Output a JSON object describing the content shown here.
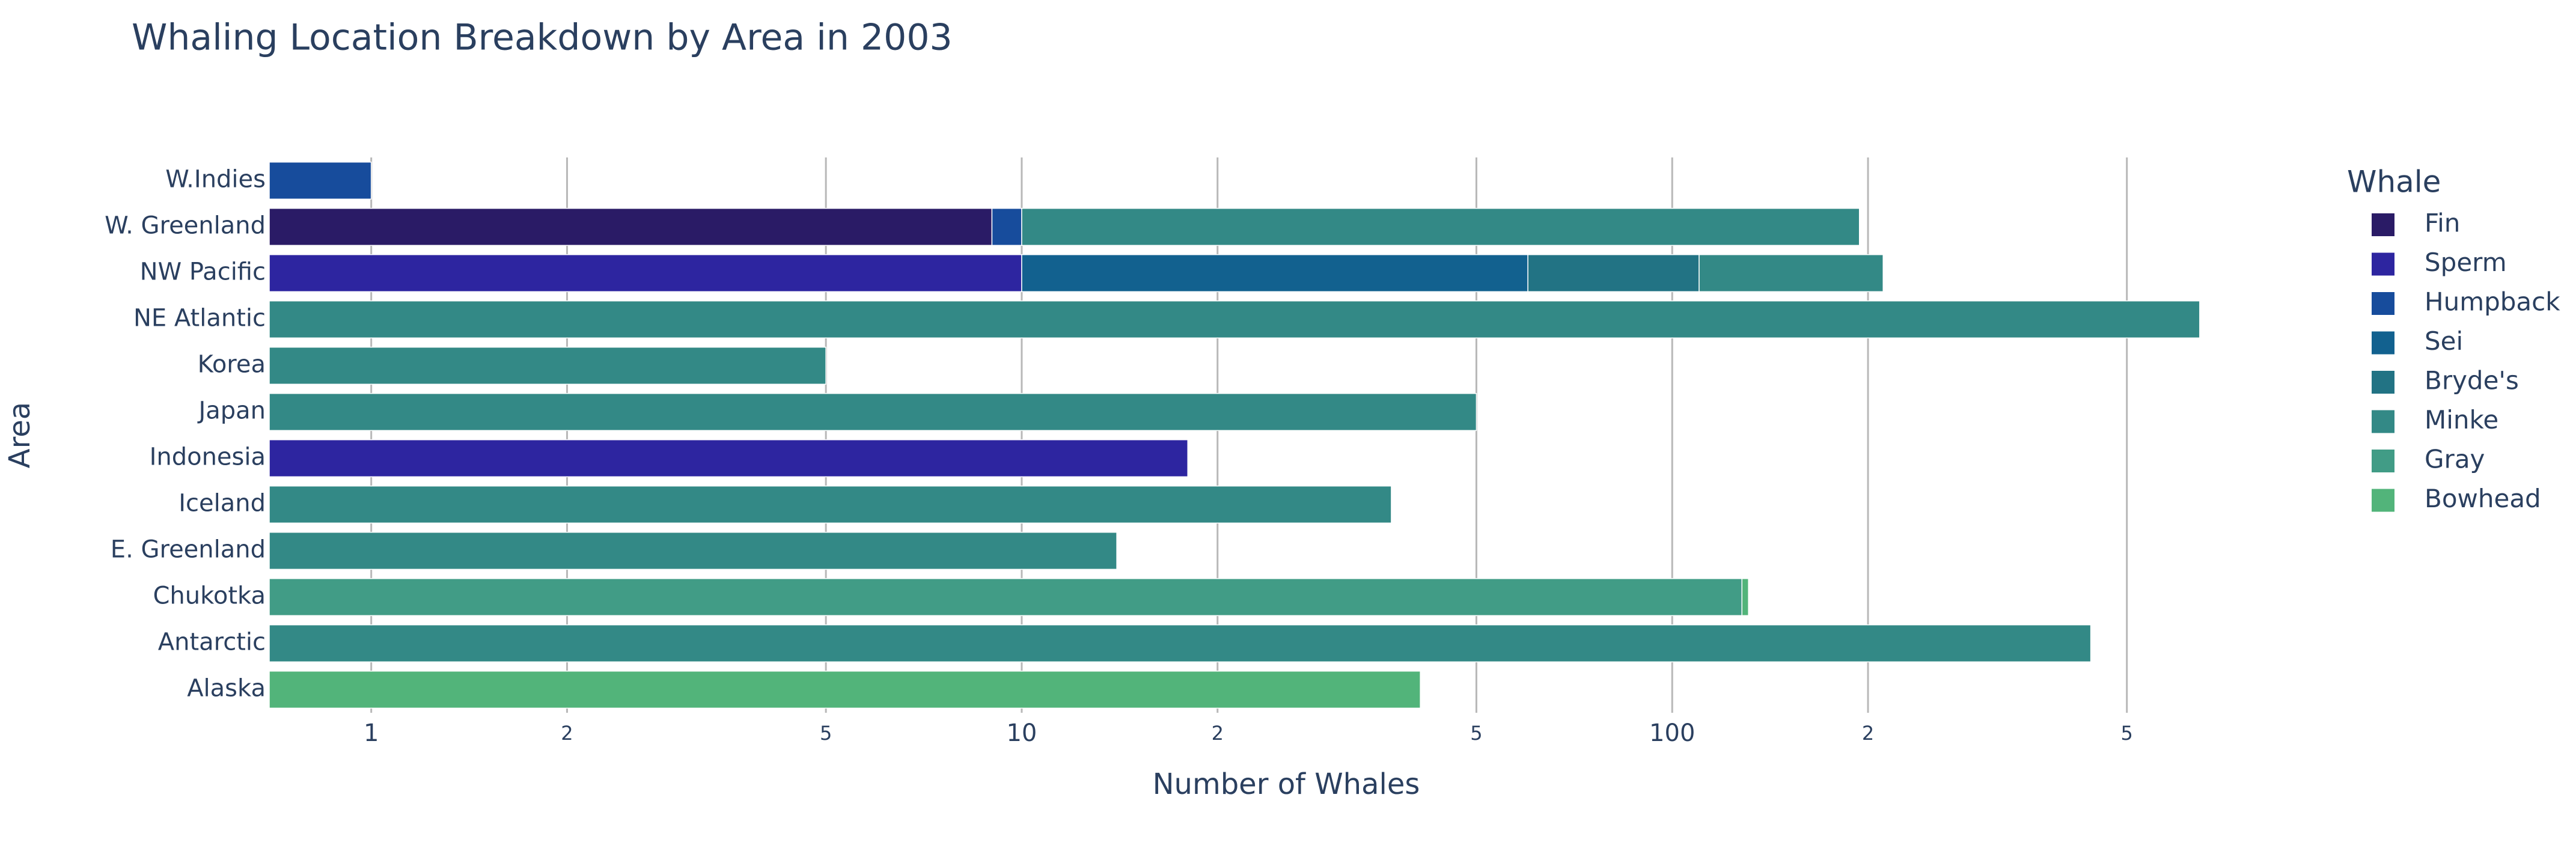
{
  "chart_data": {
    "type": "bar",
    "orientation": "horizontal",
    "barmode": "stack",
    "title": "Whaling Location Breakdown by Area in 2003",
    "x_label": "Number of Whales",
    "y_label": "Area",
    "legend_title": "Whale",
    "log_x": true,
    "grid": true,
    "categories": [
      "Alaska",
      "Antarctic",
      "Chukotka",
      "E. Greenland",
      "Iceland",
      "Indonesia",
      "Japan",
      "Korea",
      "NE Atlantic",
      "NW Pacific",
      "W. Greenland",
      "W.Indies"
    ],
    "series": [
      {
        "name": "Fin",
        "color": "#2a1b66",
        "values": [
          null,
          null,
          null,
          null,
          null,
          null,
          null,
          null,
          null,
          null,
          9,
          null
        ]
      },
      {
        "name": "Sperm",
        "color": "#2d25a0",
        "values": [
          null,
          null,
          null,
          null,
          null,
          18,
          null,
          null,
          null,
          10,
          null,
          null
        ]
      },
      {
        "name": "Humpback",
        "color": "#174c9c",
        "values": [
          null,
          null,
          null,
          null,
          null,
          null,
          null,
          null,
          null,
          null,
          1,
          1
        ]
      },
      {
        "name": "Sei",
        "color": "#12618f",
        "values": [
          null,
          null,
          null,
          null,
          null,
          null,
          null,
          null,
          null,
          50,
          null,
          null
        ]
      },
      {
        "name": "Bryde's",
        "color": "#227384",
        "values": [
          null,
          null,
          null,
          null,
          null,
          null,
          null,
          null,
          null,
          50,
          null,
          null
        ]
      },
      {
        "name": "Minke",
        "color": "#338986",
        "values": [
          null,
          440,
          null,
          14,
          37,
          null,
          50,
          5,
          647,
          101,
          184,
          null
        ]
      },
      {
        "name": "Gray",
        "color": "#419c86",
        "values": [
          null,
          null,
          128,
          null,
          null,
          null,
          null,
          null,
          null,
          null,
          null,
          null
        ]
      },
      {
        "name": "Bowhead",
        "color": "#52b47a",
        "values": [
          41,
          null,
          3,
          null,
          null,
          null,
          null,
          null,
          null,
          null,
          null,
          null
        ]
      }
    ],
    "xlim": [
      0.697,
      900
    ],
    "xticks": [
      1,
      2,
      5,
      10,
      {
        "value": 20,
        "label": "2"
      },
      {
        "value": 50,
        "label": "5"
      },
      100,
      {
        "value": 200,
        "label": "2"
      },
      {
        "value": 500,
        "label": "5"
      }
    ]
  }
}
